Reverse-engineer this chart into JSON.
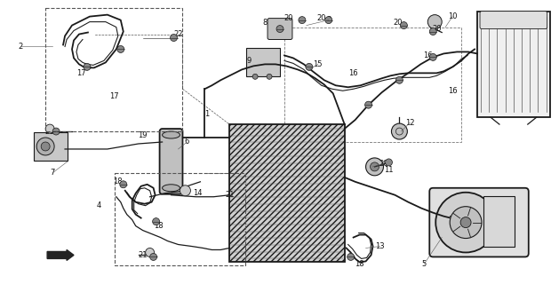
{
  "bg_color": "#ffffff",
  "fig_width": 6.29,
  "fig_height": 3.2,
  "dpi": 100,
  "line_color": "#1a1a1a",
  "label_fontsize": 6.0,
  "label_color": "#111111",
  "leader_line_color": "#333333"
}
